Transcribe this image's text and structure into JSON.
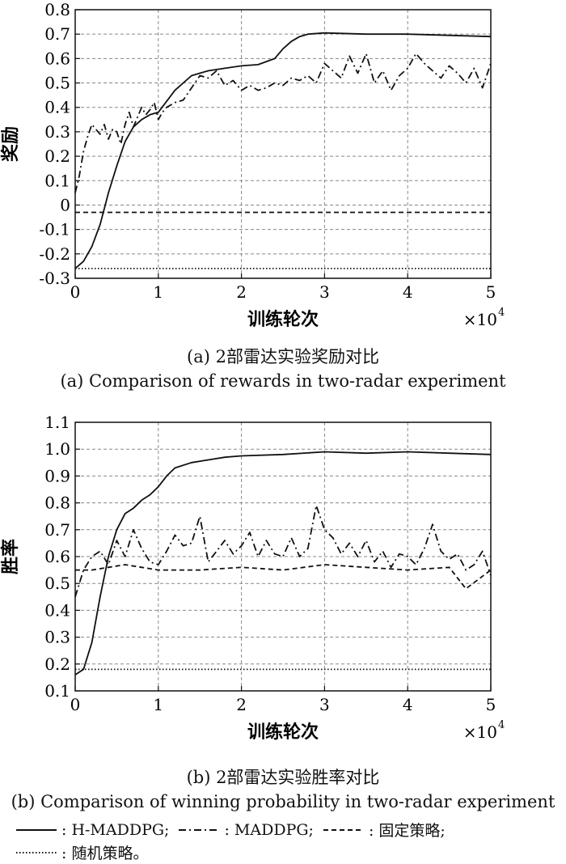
{
  "chart_data": [
    {
      "type": "line",
      "panel": "a",
      "caption_cn": "(a) 2部雷达实验奖励对比",
      "caption_en": "(a) Comparison of rewards in two-radar experiment",
      "xlabel": "训练轮次",
      "ylabel": "奖励",
      "x_multiplier": "×10",
      "x_multiplier_exp": "4",
      "xlim": [
        0,
        5
      ],
      "ylim": [
        -0.3,
        0.8
      ],
      "xticks": [
        "0",
        "1",
        "2",
        "3",
        "4",
        "5"
      ],
      "yticks": [
        "0.8",
        "0.7",
        "0.6",
        "0.5",
        "0.4",
        "0.3",
        "0.2",
        "0.1",
        "0",
        "-0.1",
        "-0.2",
        "-0.3"
      ],
      "grid": true,
      "series": [
        {
          "name": "H-MADDPG",
          "style": "solid",
          "x": [
            0,
            0.1,
            0.2,
            0.3,
            0.4,
            0.5,
            0.6,
            0.7,
            0.8,
            0.9,
            1.0,
            1.2,
            1.4,
            1.6,
            1.8,
            2.0,
            2.2,
            2.4,
            2.5,
            2.6,
            2.7,
            2.8,
            3.0,
            3.5,
            4.0,
            4.5,
            5.0
          ],
          "y": [
            -0.26,
            -0.23,
            -0.17,
            -0.08,
            0.05,
            0.16,
            0.26,
            0.32,
            0.35,
            0.37,
            0.38,
            0.47,
            0.53,
            0.55,
            0.56,
            0.57,
            0.575,
            0.6,
            0.64,
            0.67,
            0.69,
            0.7,
            0.705,
            0.7,
            0.7,
            0.695,
            0.69
          ]
        },
        {
          "name": "MADDPG",
          "style": "dashdot",
          "x": [
            0,
            0.05,
            0.1,
            0.15,
            0.2,
            0.25,
            0.3,
            0.35,
            0.4,
            0.45,
            0.5,
            0.55,
            0.6,
            0.65,
            0.7,
            0.75,
            0.8,
            0.85,
            0.9,
            0.95,
            1.0,
            1.05,
            1.1,
            1.2,
            1.3,
            1.4,
            1.5,
            1.6,
            1.7,
            1.8,
            1.9,
            2.0,
            2.1,
            2.2,
            2.3,
            2.4,
            2.5,
            2.6,
            2.7,
            2.8,
            2.9,
            3.0,
            3.1,
            3.2,
            3.3,
            3.4,
            3.5,
            3.6,
            3.7,
            3.8,
            3.9,
            4.0,
            4.1,
            4.2,
            4.3,
            4.4,
            4.5,
            4.6,
            4.7,
            4.8,
            4.9,
            5.0
          ],
          "y": [
            0.05,
            0.12,
            0.22,
            0.28,
            0.33,
            0.31,
            0.29,
            0.33,
            0.27,
            0.31,
            0.3,
            0.25,
            0.33,
            0.38,
            0.32,
            0.36,
            0.4,
            0.37,
            0.39,
            0.42,
            0.35,
            0.38,
            0.4,
            0.42,
            0.43,
            0.48,
            0.53,
            0.52,
            0.55,
            0.49,
            0.51,
            0.47,
            0.49,
            0.47,
            0.48,
            0.5,
            0.49,
            0.52,
            0.51,
            0.53,
            0.5,
            0.58,
            0.55,
            0.52,
            0.61,
            0.54,
            0.62,
            0.5,
            0.55,
            0.47,
            0.53,
            0.56,
            0.62,
            0.58,
            0.55,
            0.52,
            0.57,
            0.54,
            0.5,
            0.56,
            0.48,
            0.58
          ]
        },
        {
          "name": "固定策略",
          "style": "dashed",
          "x": [
            0,
            0.5,
            1.0,
            1.5,
            2.0,
            2.5,
            3.0,
            3.5,
            4.0,
            4.5,
            5.0
          ],
          "y": [
            -0.03,
            -0.03,
            -0.03,
            -0.03,
            -0.03,
            -0.03,
            -0.03,
            -0.03,
            -0.03,
            -0.03,
            -0.03
          ]
        },
        {
          "name": "随机策略",
          "style": "dotted",
          "x": [
            0,
            0.5,
            1.0,
            1.5,
            2.0,
            2.5,
            3.0,
            3.5,
            4.0,
            4.5,
            5.0
          ],
          "y": [
            -0.26,
            -0.26,
            -0.26,
            -0.26,
            -0.26,
            -0.26,
            -0.26,
            -0.26,
            -0.26,
            -0.26,
            -0.26
          ]
        }
      ]
    },
    {
      "type": "line",
      "panel": "b",
      "caption_cn": "(b) 2部雷达实验胜率对比",
      "caption_en": "(b) Comparison of winning probability in two-radar experiment",
      "xlabel": "训练轮次",
      "ylabel": "胜率",
      "x_multiplier": "×10",
      "x_multiplier_exp": "4",
      "xlim": [
        0,
        5
      ],
      "ylim": [
        0.1,
        1.1
      ],
      "xticks": [
        "0",
        "1",
        "2",
        "3",
        "4",
        "5"
      ],
      "yticks": [
        "1.1",
        "1.0",
        "0.9",
        "0.8",
        "0.7",
        "0.6",
        "0.5",
        "0.4",
        "0.3",
        "0.2",
        "0.1"
      ],
      "grid": true,
      "series": [
        {
          "name": "H-MADDPG",
          "style": "solid",
          "x": [
            0,
            0.1,
            0.2,
            0.3,
            0.4,
            0.5,
            0.6,
            0.7,
            0.8,
            0.9,
            1.0,
            1.1,
            1.2,
            1.4,
            1.6,
            1.8,
            2.0,
            2.5,
            3.0,
            3.5,
            4.0,
            4.5,
            5.0
          ],
          "y": [
            0.16,
            0.18,
            0.28,
            0.45,
            0.6,
            0.7,
            0.76,
            0.78,
            0.81,
            0.83,
            0.86,
            0.9,
            0.93,
            0.95,
            0.96,
            0.97,
            0.975,
            0.98,
            0.99,
            0.985,
            0.99,
            0.985,
            0.98
          ]
        },
        {
          "name": "MADDPG",
          "style": "dashdot",
          "x": [
            0,
            0.1,
            0.2,
            0.3,
            0.4,
            0.5,
            0.6,
            0.7,
            0.8,
            0.9,
            1.0,
            1.1,
            1.2,
            1.3,
            1.4,
            1.5,
            1.6,
            1.7,
            1.8,
            1.9,
            2.0,
            2.1,
            2.2,
            2.3,
            2.4,
            2.5,
            2.6,
            2.7,
            2.8,
            2.9,
            3.0,
            3.1,
            3.2,
            3.3,
            3.4,
            3.5,
            3.6,
            3.7,
            3.8,
            3.9,
            4.0,
            4.1,
            4.2,
            4.3,
            4.4,
            4.5,
            4.6,
            4.7,
            4.8,
            4.9,
            5.0
          ],
          "y": [
            0.45,
            0.55,
            0.6,
            0.62,
            0.57,
            0.66,
            0.6,
            0.7,
            0.63,
            0.58,
            0.57,
            0.62,
            0.68,
            0.64,
            0.65,
            0.75,
            0.58,
            0.62,
            0.66,
            0.61,
            0.64,
            0.69,
            0.6,
            0.66,
            0.61,
            0.6,
            0.67,
            0.6,
            0.63,
            0.79,
            0.7,
            0.67,
            0.61,
            0.65,
            0.6,
            0.66,
            0.58,
            0.62,
            0.56,
            0.61,
            0.6,
            0.57,
            0.63,
            0.72,
            0.62,
            0.59,
            0.61,
            0.55,
            0.57,
            0.62,
            0.53
          ]
        },
        {
          "name": "固定策略",
          "style": "dashed",
          "x": [
            0,
            0.2,
            0.4,
            0.6,
            0.8,
            1.0,
            1.5,
            2.0,
            2.5,
            3.0,
            3.5,
            4.0,
            4.5,
            4.7,
            5.0
          ],
          "y": [
            0.55,
            0.55,
            0.56,
            0.57,
            0.56,
            0.55,
            0.55,
            0.56,
            0.55,
            0.57,
            0.56,
            0.55,
            0.56,
            0.48,
            0.55
          ]
        },
        {
          "name": "随机策略",
          "style": "dotted",
          "x": [
            0,
            0.5,
            1.0,
            1.5,
            2.0,
            2.5,
            3.0,
            3.5,
            4.0,
            4.5,
            5.0
          ],
          "y": [
            0.18,
            0.18,
            0.18,
            0.18,
            0.18,
            0.18,
            0.18,
            0.18,
            0.18,
            0.18,
            0.18
          ]
        }
      ]
    }
  ],
  "legend": {
    "items": [
      {
        "style": "solid",
        "label": ": H-MADDPG;"
      },
      {
        "style": "dashdot",
        "label": ": MADDPG;"
      },
      {
        "style": "dashed",
        "label": ": 固定策略;"
      },
      {
        "style": "dotted",
        "label": ": 随机策略。"
      }
    ]
  }
}
